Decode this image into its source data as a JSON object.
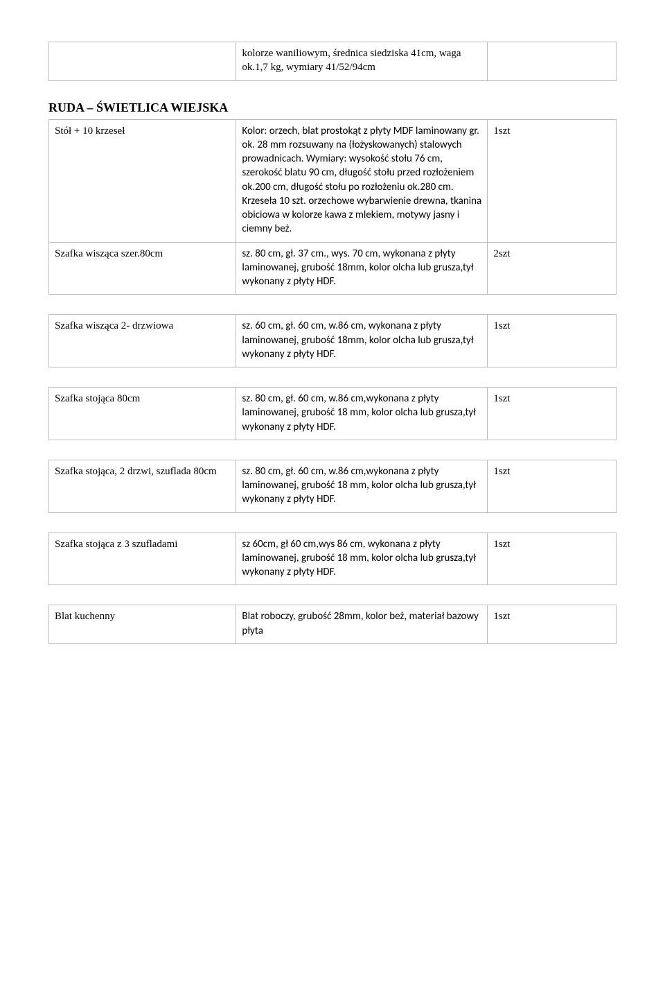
{
  "top_row": {
    "col1": "",
    "col2": "kolorze waniliowym, średnica siedziska 41cm, waga ok.1,7 kg, wymiary 41/52/94cm",
    "col3": ""
  },
  "section_title": "RUDA – ŚWIETLICA WIEJSKA",
  "rows": [
    {
      "label": "Stół + 10 krzeseł",
      "desc": "Kolor: orzech, blat prostokąt z płyty MDF laminowany gr. ok. 28 mm rozsuwany na (łożyskowanych) stalowych prowadnicach. Wymiary: wysokość stołu 76 cm, szerokość blatu 90 cm, długość stołu przed rozłożeniem ok.200 cm, długość stołu po rozłożeniu ok.280 cm. Krzeseła 10 szt. orzechowe wybarwienie drewna, tkanina obiciowa w kolorze kawa z mlekiem, motywy jasny i ciemny beż.",
      "qty": "1szt"
    },
    {
      "label": "Szafka wisząca szer.80cm",
      "desc": "sz. 80 cm, gł. 37 cm., wys. 70  cm, wykonana z płyty laminowanej, grubość 18mm, kolor olcha lub grusza,tył wykonany z płyty HDF.",
      "qty": "2szt"
    },
    {
      "label": "Szafka wisząca 2- drzwiowa",
      "desc": "sz. 60 cm, gł. 60 cm, w.86 cm, wykonana z płyty laminowanej, grubość 18mm, kolor olcha lub grusza,tył wykonany z płyty HDF.",
      "qty": "1szt"
    },
    {
      "label": "Szafka stojąca 80cm",
      "desc": "sz. 80 cm, gł. 60 cm, w.86 cm,wykonana z płyty laminowanej, grubość 18 mm, kolor olcha lub grusza,tył wykonany z płyty HDF.",
      "qty": "1szt"
    },
    {
      "label": "Szafka stojąca, 2 drzwi, szuflada 80cm",
      "desc": "sz. 80 cm, gł. 60 cm, w.86 cm,wykonana z płyty laminowanej, grubość 18 mm, kolor olcha lub grusza,tył wykonany z płyty HDF.",
      "qty": "1szt"
    },
    {
      "label": "Szafka stojąca z 3 szufladami",
      "desc": "sz 60cm, gł 60 cm,wys 86 cm, wykonana z płyty laminowanej, grubość 18 mm, kolor olcha lub grusza,tył wykonany z płyty HDF.",
      "qty": "1szt"
    },
    {
      "label": "Blat kuchenny",
      "desc": "Blat roboczy, grubość 28mm, kolor beż, materiał bazowy płyta",
      "qty": "1szt"
    }
  ]
}
